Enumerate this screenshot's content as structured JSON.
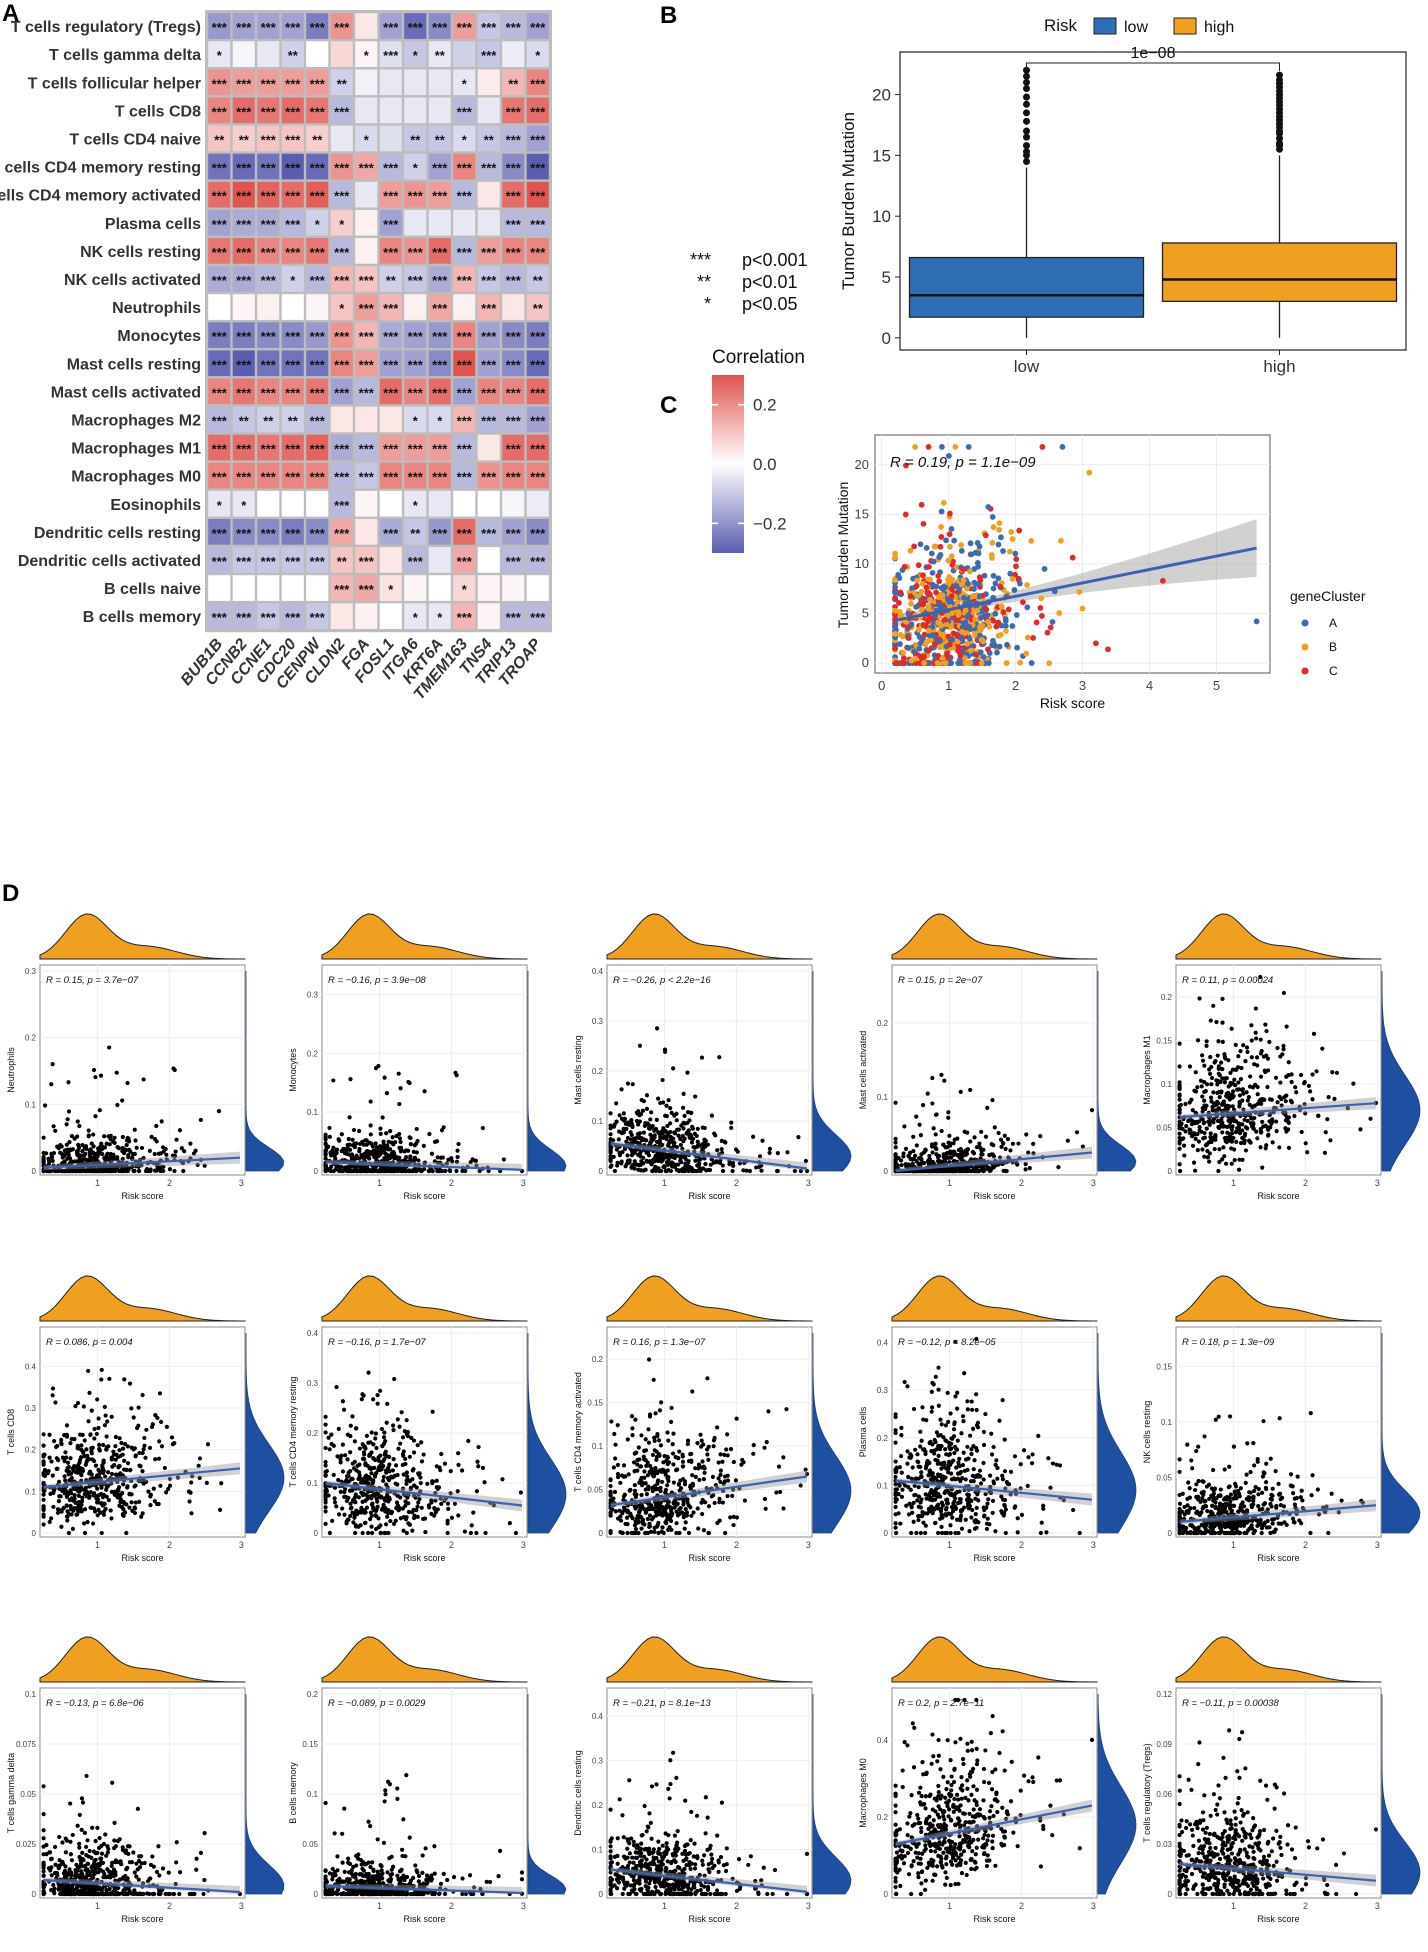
{
  "panels": {
    "a": "A",
    "b": "B",
    "c": "C",
    "d": "D"
  },
  "chart_data": [
    {
      "type": "heatmap",
      "panel": "A",
      "rows": [
        "T cells regulatory (Tregs)",
        "T cells gamma delta",
        "T cells follicular helper",
        "T cells CD8",
        "T cells CD4 naive",
        "T cells CD4 memory resting",
        "T cells CD4 memory activated",
        "Plasma cells",
        "NK cells resting",
        "NK cells activated",
        "Neutrophils",
        "Monocytes",
        "Mast cells resting",
        "Mast cells activated",
        "Macrophages M2",
        "Macrophages M1",
        "Macrophages M0",
        "Eosinophils",
        "Dendritic cells resting",
        "Dendritic cells activated",
        "B cells naive",
        "B cells memory"
      ],
      "columns": [
        "BUB1B",
        "CCNB2",
        "CCNE1",
        "CDC20",
        "CENPW",
        "CLDN2",
        "FGA",
        "FOSL1",
        "ITGA6",
        "KRT6A",
        "TMEM163",
        "TNS4",
        "TRIP13",
        "TROAP"
      ],
      "values": [
        [
          -0.22,
          -0.2,
          -0.2,
          -0.2,
          -0.28,
          0.22,
          0.05,
          -0.2,
          -0.32,
          -0.25,
          0.2,
          -0.12,
          -0.15,
          -0.2
        ],
        [
          -0.05,
          -0.02,
          -0.05,
          -0.1,
          0.0,
          0.08,
          0.02,
          -0.07,
          -0.12,
          -0.05,
          -0.1,
          -0.12,
          -0.04,
          -0.08
        ],
        [
          0.22,
          0.2,
          0.2,
          0.2,
          0.2,
          -0.1,
          -0.03,
          -0.05,
          -0.05,
          -0.05,
          -0.05,
          0.04,
          0.15,
          0.25
        ],
        [
          0.25,
          0.3,
          0.28,
          0.3,
          0.28,
          -0.15,
          -0.05,
          -0.05,
          -0.05,
          -0.05,
          -0.15,
          -0.05,
          0.28,
          0.3
        ],
        [
          0.12,
          0.1,
          0.12,
          0.12,
          0.1,
          -0.05,
          -0.08,
          -0.07,
          -0.12,
          -0.12,
          -0.08,
          -0.12,
          -0.15,
          -0.2
        ],
        [
          -0.3,
          -0.32,
          -0.3,
          -0.35,
          -0.32,
          0.22,
          0.18,
          -0.15,
          -0.1,
          -0.2,
          0.25,
          -0.15,
          -0.25,
          -0.35
        ],
        [
          0.3,
          0.35,
          0.32,
          0.3,
          0.33,
          -0.15,
          -0.05,
          0.2,
          0.22,
          0.2,
          -0.15,
          0.05,
          0.3,
          0.35
        ],
        [
          -0.2,
          -0.18,
          -0.18,
          -0.15,
          -0.1,
          0.1,
          0.03,
          -0.2,
          -0.05,
          -0.05,
          -0.05,
          -0.05,
          -0.15,
          -0.15
        ],
        [
          0.28,
          0.3,
          0.25,
          0.25,
          0.28,
          -0.15,
          0.03,
          0.25,
          0.22,
          0.3,
          -0.15,
          0.2,
          0.25,
          0.25
        ],
        [
          -0.18,
          -0.18,
          -0.15,
          -0.1,
          -0.15,
          0.15,
          0.12,
          -0.1,
          -0.12,
          -0.18,
          0.15,
          -0.12,
          -0.15,
          -0.12
        ],
        [
          0.0,
          0.02,
          0.03,
          0.0,
          0.02,
          0.12,
          0.2,
          0.15,
          0.03,
          0.18,
          0.03,
          0.15,
          0.05,
          0.12
        ],
        [
          -0.28,
          -0.28,
          -0.25,
          -0.25,
          -0.22,
          0.22,
          0.15,
          -0.18,
          -0.2,
          -0.22,
          0.25,
          -0.2,
          -0.25,
          -0.28
        ],
        [
          -0.32,
          -0.35,
          -0.3,
          -0.3,
          -0.3,
          0.25,
          0.2,
          -0.2,
          -0.2,
          -0.25,
          0.38,
          -0.2,
          -0.25,
          -0.32
        ],
        [
          0.25,
          0.28,
          0.25,
          0.25,
          0.28,
          -0.2,
          -0.15,
          0.3,
          0.25,
          0.3,
          -0.2,
          0.25,
          0.25,
          0.3
        ],
        [
          -0.15,
          -0.12,
          -0.1,
          -0.1,
          -0.15,
          0.05,
          0.05,
          0.05,
          -0.08,
          -0.08,
          0.15,
          -0.15,
          -0.15,
          -0.2
        ],
        [
          0.3,
          0.3,
          0.28,
          0.3,
          0.32,
          -0.18,
          -0.15,
          0.2,
          0.2,
          0.2,
          -0.15,
          0.05,
          0.3,
          0.3
        ],
        [
          0.25,
          0.25,
          0.25,
          0.25,
          0.25,
          -0.15,
          -0.12,
          0.25,
          0.25,
          0.25,
          -0.15,
          0.22,
          0.25,
          0.25
        ],
        [
          -0.05,
          -0.05,
          0.0,
          0.0,
          0.0,
          -0.15,
          0.02,
          0.0,
          -0.05,
          -0.05,
          0.0,
          0.0,
          -0.02,
          -0.04
        ],
        [
          -0.28,
          -0.25,
          -0.25,
          -0.28,
          -0.25,
          0.18,
          0.05,
          -0.18,
          -0.12,
          -0.22,
          0.3,
          -0.15,
          -0.2,
          -0.25
        ],
        [
          -0.15,
          -0.12,
          -0.12,
          -0.12,
          -0.12,
          0.12,
          0.12,
          0.05,
          -0.15,
          -0.05,
          0.18,
          0.0,
          -0.15,
          -0.15
        ],
        [
          0.0,
          0.0,
          0.0,
          0.0,
          0.0,
          0.15,
          0.18,
          0.06,
          0.02,
          0.0,
          0.08,
          0.02,
          0.02,
          0.0
        ],
        [
          -0.15,
          -0.15,
          -0.12,
          -0.15,
          -0.12,
          0.05,
          0.03,
          0.0,
          -0.05,
          -0.05,
          0.15,
          0.02,
          -0.15,
          -0.15
        ]
      ],
      "stars": [
        [
          "***",
          "***",
          "***",
          "***",
          "***",
          "***",
          "",
          "***",
          "***",
          "***",
          "***",
          "***",
          "***",
          "***"
        ],
        [
          "*",
          "",
          "",
          "**",
          "",
          "",
          "*",
          "***",
          "*",
          "**",
          "",
          "***",
          "",
          "*"
        ],
        [
          "***",
          "***",
          "***",
          "***",
          "***",
          "**",
          "",
          "",
          "",
          "",
          "*",
          "",
          "**",
          "***"
        ],
        [
          "***",
          "***",
          "***",
          "***",
          "***",
          "***",
          "",
          "",
          "",
          "",
          "***",
          "",
          "***",
          "***"
        ],
        [
          "**",
          "**",
          "***",
          "***",
          "**",
          "",
          "*",
          "",
          "**",
          "**",
          "*",
          "**",
          "***",
          "***"
        ],
        [
          "***",
          "***",
          "***",
          "***",
          "***",
          "***",
          "***",
          "***",
          "*",
          "***",
          "***",
          "***",
          "***",
          "***"
        ],
        [
          "***",
          "***",
          "***",
          "***",
          "***",
          "***",
          "",
          "***",
          "***",
          "***",
          "***",
          "",
          "***",
          "***"
        ],
        [
          "***",
          "***",
          "***",
          "***",
          "*",
          "*",
          "",
          "***",
          "",
          "",
          "",
          "",
          "***",
          "***"
        ],
        [
          "***",
          "***",
          "***",
          "***",
          "***",
          "***",
          "",
          "***",
          "***",
          "***",
          "***",
          "***",
          "***",
          "***"
        ],
        [
          "***",
          "***",
          "***",
          "*",
          "***",
          "***",
          "***",
          "**",
          "***",
          "***",
          "***",
          "***",
          "***",
          "**"
        ],
        [
          "",
          "",
          "",
          "",
          "",
          "*",
          "***",
          "***",
          "",
          "***",
          "",
          "***",
          "",
          "**"
        ],
        [
          "***",
          "***",
          "***",
          "***",
          "***",
          "***",
          "***",
          "***",
          "***",
          "***",
          "***",
          "***",
          "***",
          "***"
        ],
        [
          "***",
          "***",
          "***",
          "***",
          "***",
          "***",
          "***",
          "***",
          "***",
          "***",
          "***",
          "***",
          "***",
          "***"
        ],
        [
          "***",
          "***",
          "***",
          "***",
          "***",
          "***",
          "***",
          "***",
          "***",
          "***",
          "***",
          "***",
          "***",
          "***"
        ],
        [
          "***",
          "**",
          "**",
          "**",
          "***",
          "",
          "",
          "",
          "*",
          "*",
          "***",
          "***",
          "***",
          "***"
        ],
        [
          "***",
          "***",
          "***",
          "***",
          "***",
          "***",
          "***",
          "***",
          "***",
          "***",
          "***",
          "",
          "***",
          "***"
        ],
        [
          "***",
          "***",
          "***",
          "***",
          "***",
          "***",
          "***",
          "***",
          "***",
          "***",
          "***",
          "***",
          "***",
          "***"
        ],
        [
          "*",
          "*",
          "",
          "",
          "",
          "***",
          "",
          "",
          "*",
          "",
          "",
          "",
          "",
          ""
        ],
        [
          "***",
          "***",
          "***",
          "***",
          "***",
          "***",
          "",
          "***",
          "**",
          "***",
          "***",
          "***",
          "***",
          "***"
        ],
        [
          "***",
          "***",
          "***",
          "***",
          "***",
          "**",
          "***",
          "",
          "***",
          "",
          "***",
          "",
          "***",
          "***"
        ],
        [
          "",
          "",
          "",
          "",
          "",
          "***",
          "***",
          "*",
          "",
          "",
          "*",
          "",
          "",
          ""
        ],
        [
          "***",
          "***",
          "***",
          "***",
          "***",
          "",
          "",
          "",
          "*",
          "*",
          "***",
          "",
          "***",
          "***"
        ]
      ],
      "legend_title": "Correlation",
      "legend_ticks": [
        "0.2",
        "0.0",
        "−0.2"
      ],
      "legend_range": [
        -0.3,
        0.3
      ],
      "colors": {
        "neg": "#5a5db0",
        "mid": "#ffffff",
        "pos": "#e05550"
      },
      "sig_legend": [
        {
          "stars": "***",
          "label": "p<0.001"
        },
        {
          "stars": "**",
          "label": "p<0.01"
        },
        {
          "stars": "*",
          "label": "p<0.05"
        }
      ]
    },
    {
      "type": "box",
      "panel": "B",
      "legend_title": "Risk",
      "series": [
        {
          "name": "low",
          "color": "#2f6db5",
          "q1": 1.7,
          "median": 3.5,
          "q3": 6.6,
          "whisker_low": 0,
          "whisker_high": 14,
          "outliers": [
            14.5,
            15,
            15.3,
            15.8,
            16.5,
            17,
            17.8,
            18.5,
            19.2,
            19.8,
            20.5,
            21,
            21.5,
            22
          ]
        },
        {
          "name": "high",
          "color": "#f0a020",
          "q1": 3,
          "median": 4.8,
          "q3": 7.8,
          "whisker_low": 0,
          "whisker_high": 15,
          "outliers": [
            15.5,
            15.8,
            16,
            16.4,
            16.8,
            17,
            17.3,
            17.6,
            17.9,
            18.2,
            18.5,
            18.8,
            19.1,
            19.4,
            19.7,
            20,
            20.3,
            20.6,
            20.9,
            21.2,
            21.6
          ]
        }
      ],
      "categories": [
        "low",
        "high"
      ],
      "ylabel": "Tumor Burden Mutation",
      "yticks": [
        0,
        5,
        10,
        15,
        20
      ],
      "ylim": [
        -1,
        23.5
      ],
      "pvalue": "1e−08"
    },
    {
      "type": "scatter",
      "panel": "C",
      "xlabel": "Risk score",
      "ylabel": "Tumor Burden Mutation",
      "xticks": [
        0,
        1,
        2,
        3,
        4,
        5
      ],
      "yticks": [
        0,
        5,
        10,
        15,
        20
      ],
      "xlim": [
        -0.1,
        5.8
      ],
      "ylim": [
        -1,
        23
      ],
      "annotation": "R = 0.19, p = 1.1e−09",
      "legend_title": "geneCluster",
      "groups": [
        {
          "name": "A",
          "color": "#3a6bb5"
        },
        {
          "name": "B",
          "color": "#f0a020"
        },
        {
          "name": "C",
          "color": "#e02a2a"
        }
      ],
      "fit": {
        "x": [
          0.2,
          5.6
        ],
        "y": [
          4.3,
          11.6
        ]
      },
      "n_points": 900
    },
    {
      "type": "scatter",
      "panel": "D",
      "xlabel": "Risk score",
      "xticks": [
        1,
        2,
        3
      ],
      "subplots": [
        {
          "ylabel": "Neutrophils",
          "stat": "R = 0.15, p = 3.7e−07",
          "ymax": 0.3,
          "yticks": [
            0,
            0.1,
            0.2,
            0.3
          ],
          "y0": 0.005,
          "y1": 0.02,
          "spread": 0.02
        },
        {
          "ylabel": "Monocytes",
          "stat": "R = −0.16, p = 3.9e−08",
          "ymax": 0.34,
          "yticks": [
            0,
            0.1,
            0.2,
            0.3
          ],
          "y0": 0.015,
          "y1": 0.002,
          "spread": 0.025
        },
        {
          "ylabel": "Mast cells resting",
          "stat": "R = −0.26, p < 2.2e−16",
          "ymax": 0.4,
          "yticks": [
            0,
            0.1,
            0.2,
            0.3,
            0.4
          ],
          "y0": 0.055,
          "y1": 0.005,
          "spread": 0.04
        },
        {
          "ylabel": "Mast cells activated",
          "stat": "R = 0.15, p = 2e−07",
          "ymax": 0.27,
          "yticks": [
            0,
            0.1,
            0.2
          ],
          "y0": 0.0,
          "y1": 0.025,
          "spread": 0.02
        },
        {
          "ylabel": "Macrophages M1",
          "stat": "R = 0.11, p = 0.00024",
          "ymax": 0.23,
          "yticks": [
            0,
            0.05,
            0.1,
            0.15,
            0.2
          ],
          "y0": 0.062,
          "y1": 0.078,
          "spread": 0.04
        },
        {
          "ylabel": "T cells CD8",
          "stat": "R = 0.086, p = 0.004",
          "ymax": 0.48,
          "yticks": [
            0,
            0.1,
            0.2,
            0.3,
            0.4
          ],
          "y0": 0.11,
          "y1": 0.155,
          "spread": 0.08
        },
        {
          "ylabel": "T cells CD4 memory resting",
          "stat": "R = −0.16, p = 1.7e−07",
          "ymax": 0.4,
          "yticks": [
            0,
            0.1,
            0.2,
            0.3,
            0.4
          ],
          "y0": 0.1,
          "y1": 0.055,
          "spread": 0.07
        },
        {
          "ylabel": "T cells CD4 memory activated",
          "stat": "R = 0.16, p = 1.3e−07",
          "ymax": 0.23,
          "yticks": [
            0,
            0.05,
            0.1,
            0.15,
            0.2
          ],
          "y0": 0.032,
          "y1": 0.065,
          "spread": 0.04
        },
        {
          "ylabel": "Plasma cells",
          "stat": "R = −0.12, p = 8.2e−05",
          "ymax": 0.42,
          "yticks": [
            0,
            0.1,
            0.2,
            0.3,
            0.4
          ],
          "y0": 0.11,
          "y1": 0.07,
          "spread": 0.08
        },
        {
          "ylabel": "NK cells resting",
          "stat": "R = 0.18, p = 1.3e−09",
          "ymax": 0.18,
          "yticks": [
            0,
            0.05,
            0.1,
            0.15
          ],
          "y0": 0.01,
          "y1": 0.025,
          "spread": 0.02
        },
        {
          "ylabel": "T cells gamma delta",
          "stat": "R = −0.13, p = 6.8e−06",
          "ymax": 0.1,
          "yticks": [
            0,
            0.025,
            0.05,
            0.075,
            0.1
          ],
          "y0": 0.007,
          "y1": 0.001,
          "spread": 0.01
        },
        {
          "ylabel": "B cells memory",
          "stat": "R = −0.089, p = 0.0029",
          "ymax": 0.2,
          "yticks": [
            0,
            0.05,
            0.1,
            0.15,
            0.2
          ],
          "y0": 0.008,
          "y1": 0.001,
          "spread": 0.012
        },
        {
          "ylabel": "Dendritic cells resting",
          "stat": "R = −0.21, p = 8.1e−13",
          "ymax": 0.45,
          "yticks": [
            0,
            0.1,
            0.2,
            0.3,
            0.4
          ],
          "y0": 0.055,
          "y1": 0.005,
          "spread": 0.05
        },
        {
          "ylabel": "Macrophages M0",
          "stat": "R = 0.2, p = 2.7e−11",
          "ymax": 0.52,
          "yticks": [
            0,
            0.2,
            0.4
          ],
          "y0": 0.13,
          "y1": 0.23,
          "spread": 0.1
        },
        {
          "ylabel": "T cells regulatory (Tregs)",
          "stat": "R = −0.11, p = 0.00038",
          "ymax": 0.12,
          "yticks": [
            0,
            0.03,
            0.06,
            0.09,
            0.12
          ],
          "y0": 0.018,
          "y1": 0.008,
          "spread": 0.018
        }
      ]
    }
  ]
}
